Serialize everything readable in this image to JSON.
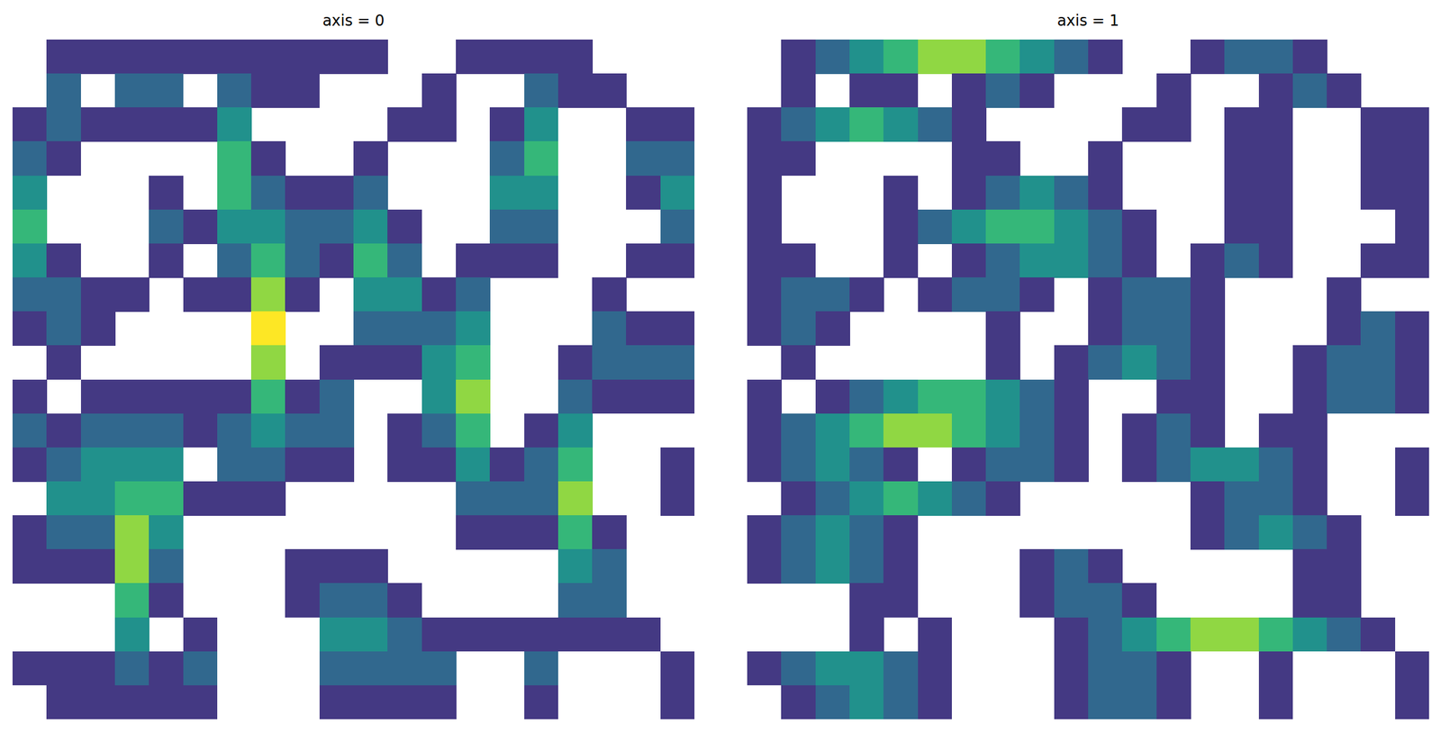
{
  "chart_data": [
    {
      "type": "heatmap",
      "title": "axis = 0",
      "color": "viridis",
      "tick_labels": false,
      "zlim": [
        0,
        6
      ],
      "cells": [
        [
          null,
          1,
          1,
          1,
          1,
          1,
          1,
          1,
          1,
          1,
          1,
          null,
          null,
          1,
          1,
          1,
          1,
          null,
          null,
          null
        ],
        [
          null,
          2,
          null,
          2,
          2,
          null,
          2,
          1,
          1,
          null,
          null,
          null,
          1,
          null,
          null,
          2,
          1,
          1,
          null,
          null
        ],
        [
          1,
          2,
          1,
          1,
          1,
          1,
          3,
          null,
          null,
          null,
          null,
          1,
          1,
          null,
          1,
          3,
          null,
          null,
          1,
          1
        ],
        [
          2,
          1,
          null,
          null,
          null,
          null,
          4,
          1,
          null,
          null,
          1,
          null,
          null,
          null,
          2,
          4,
          null,
          null,
          2,
          2
        ],
        [
          3,
          null,
          null,
          null,
          1,
          null,
          4,
          2,
          1,
          1,
          2,
          null,
          null,
          null,
          3,
          3,
          null,
          null,
          1,
          3
        ],
        [
          4,
          null,
          null,
          null,
          2,
          1,
          3,
          3,
          2,
          2,
          3,
          1,
          null,
          null,
          2,
          2,
          null,
          null,
          null,
          2
        ],
        [
          3,
          1,
          null,
          null,
          1,
          null,
          2,
          4,
          2,
          1,
          4,
          2,
          null,
          1,
          1,
          1,
          null,
          null,
          1,
          1
        ],
        [
          2,
          2,
          1,
          1,
          null,
          1,
          1,
          5,
          1,
          null,
          3,
          3,
          1,
          2,
          null,
          null,
          null,
          1,
          null,
          null
        ],
        [
          1,
          2,
          1,
          null,
          null,
          null,
          null,
          6,
          null,
          null,
          2,
          2,
          2,
          3,
          null,
          null,
          null,
          2,
          1,
          1
        ],
        [
          null,
          1,
          null,
          null,
          null,
          null,
          null,
          5,
          null,
          1,
          1,
          1,
          3,
          4,
          null,
          null,
          1,
          2,
          2,
          2
        ],
        [
          1,
          null,
          1,
          1,
          1,
          1,
          1,
          4,
          1,
          2,
          null,
          null,
          3,
          5,
          null,
          null,
          2,
          1,
          1,
          1
        ],
        [
          2,
          1,
          2,
          2,
          2,
          1,
          2,
          3,
          2,
          2,
          null,
          1,
          2,
          4,
          null,
          1,
          3,
          null,
          null,
          null
        ],
        [
          1,
          2,
          3,
          3,
          3,
          null,
          2,
          2,
          1,
          1,
          null,
          1,
          1,
          3,
          1,
          2,
          4,
          null,
          null,
          1
        ],
        [
          null,
          3,
          3,
          4,
          4,
          1,
          1,
          1,
          null,
          null,
          null,
          null,
          null,
          2,
          2,
          2,
          5,
          null,
          null,
          1
        ],
        [
          1,
          2,
          2,
          5,
          3,
          null,
          null,
          null,
          null,
          null,
          null,
          null,
          null,
          1,
          1,
          1,
          4,
          1,
          null,
          null
        ],
        [
          1,
          1,
          1,
          5,
          2,
          null,
          null,
          null,
          1,
          1,
          1,
          null,
          null,
          null,
          null,
          null,
          3,
          2,
          null,
          null
        ],
        [
          null,
          null,
          null,
          4,
          1,
          null,
          null,
          null,
          1,
          2,
          2,
          1,
          null,
          null,
          null,
          null,
          2,
          2,
          null,
          null
        ],
        [
          null,
          null,
          null,
          3,
          null,
          1,
          null,
          null,
          null,
          3,
          3,
          2,
          1,
          1,
          1,
          1,
          1,
          1,
          1,
          null
        ],
        [
          1,
          1,
          1,
          2,
          1,
          2,
          null,
          null,
          null,
          2,
          2,
          2,
          2,
          null,
          null,
          2,
          null,
          null,
          null,
          1
        ],
        [
          null,
          1,
          1,
          1,
          1,
          1,
          null,
          null,
          null,
          1,
          1,
          1,
          1,
          null,
          null,
          1,
          null,
          null,
          null,
          1
        ]
      ]
    },
    {
      "type": "heatmap",
      "title": "axis = 1",
      "color": "viridis",
      "tick_labels": false,
      "zlim": [
        0,
        6
      ],
      "cells": [
        [
          null,
          1,
          2,
          3,
          4,
          5,
          5,
          4,
          3,
          2,
          1,
          null,
          null,
          1,
          2,
          2,
          1,
          null,
          null,
          null
        ],
        [
          null,
          1,
          null,
          1,
          1,
          null,
          1,
          2,
          1,
          null,
          null,
          null,
          1,
          null,
          null,
          1,
          2,
          1,
          null,
          null
        ],
        [
          1,
          2,
          3,
          4,
          3,
          2,
          1,
          null,
          null,
          null,
          null,
          1,
          1,
          null,
          1,
          1,
          null,
          null,
          1,
          1
        ],
        [
          1,
          1,
          null,
          null,
          null,
          null,
          1,
          1,
          null,
          null,
          1,
          null,
          null,
          null,
          1,
          1,
          null,
          null,
          1,
          1
        ],
        [
          1,
          null,
          null,
          null,
          1,
          null,
          1,
          2,
          3,
          2,
          1,
          null,
          null,
          null,
          1,
          1,
          null,
          null,
          1,
          1
        ],
        [
          1,
          null,
          null,
          null,
          1,
          2,
          3,
          4,
          4,
          3,
          2,
          1,
          null,
          null,
          1,
          1,
          null,
          null,
          null,
          1
        ],
        [
          1,
          1,
          null,
          null,
          1,
          null,
          1,
          2,
          3,
          3,
          2,
          1,
          null,
          1,
          2,
          1,
          null,
          null,
          1,
          1
        ],
        [
          1,
          2,
          2,
          1,
          null,
          1,
          2,
          2,
          1,
          null,
          1,
          2,
          2,
          1,
          null,
          null,
          null,
          1,
          null,
          null
        ],
        [
          1,
          2,
          1,
          null,
          null,
          null,
          null,
          1,
          null,
          null,
          1,
          2,
          2,
          1,
          null,
          null,
          null,
          1,
          2,
          1
        ],
        [
          null,
          1,
          null,
          null,
          null,
          null,
          null,
          1,
          null,
          1,
          2,
          3,
          2,
          1,
          null,
          null,
          1,
          2,
          2,
          1
        ],
        [
          1,
          null,
          1,
          2,
          3,
          4,
          4,
          3,
          2,
          1,
          null,
          null,
          1,
          1,
          null,
          null,
          1,
          2,
          2,
          1
        ],
        [
          1,
          2,
          3,
          4,
          5,
          5,
          4,
          3,
          2,
          1,
          null,
          1,
          2,
          1,
          null,
          1,
          1,
          null,
          null,
          null
        ],
        [
          1,
          2,
          3,
          2,
          1,
          null,
          1,
          2,
          2,
          1,
          null,
          1,
          2,
          3,
          3,
          2,
          1,
          null,
          null,
          1
        ],
        [
          null,
          1,
          2,
          3,
          4,
          3,
          2,
          1,
          null,
          null,
          null,
          null,
          null,
          1,
          2,
          2,
          1,
          null,
          null,
          1
        ],
        [
          1,
          2,
          3,
          2,
          1,
          null,
          null,
          null,
          null,
          null,
          null,
          null,
          null,
          1,
          2,
          3,
          2,
          1,
          null,
          null
        ],
        [
          1,
          2,
          3,
          2,
          1,
          null,
          null,
          null,
          1,
          2,
          1,
          null,
          null,
          null,
          null,
          null,
          1,
          1,
          null,
          null
        ],
        [
          null,
          null,
          null,
          1,
          1,
          null,
          null,
          null,
          1,
          2,
          2,
          1,
          null,
          null,
          null,
          null,
          1,
          1,
          null,
          null
        ],
        [
          null,
          null,
          null,
          1,
          null,
          1,
          null,
          null,
          null,
          1,
          2,
          3,
          4,
          5,
          5,
          4,
          3,
          2,
          1,
          null
        ],
        [
          1,
          2,
          3,
          3,
          2,
          1,
          null,
          null,
          null,
          1,
          2,
          2,
          1,
          null,
          null,
          1,
          null,
          null,
          null,
          1
        ],
        [
          null,
          1,
          2,
          3,
          2,
          1,
          null,
          null,
          null,
          1,
          2,
          2,
          1,
          null,
          null,
          1,
          null,
          null,
          null,
          1
        ]
      ]
    }
  ]
}
